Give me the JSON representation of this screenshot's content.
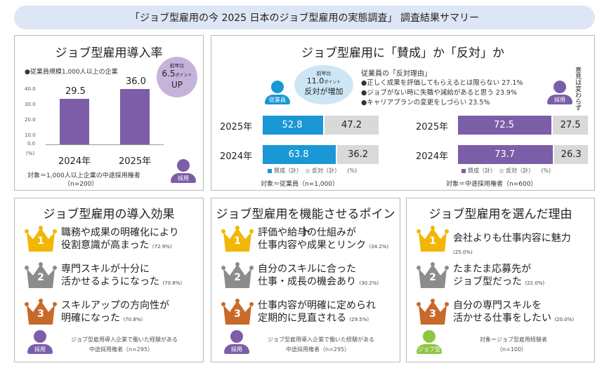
{
  "title": "「ジョブ型雇用の今 2025 日本のジョブ型雇用の実態調査」 調査結果サマリー",
  "colors": {
    "purple": "#7b5ea7",
    "blue": "#1a97d5",
    "gray": "#d9d9d9",
    "gold": "#f2b705",
    "silver": "#8c8c8c",
    "bronze": "#c86a2a",
    "green": "#8ec63f"
  },
  "intro": {
    "title": "ジョブ型雇用導入率",
    "subtitle": "●従業員規模1,000人以上の企業",
    "bubble": {
      "line1": "前年比",
      "line2": "6.5",
      "line2_unit": "ポイント",
      "line3": "UP"
    },
    "y_unit": "(%)",
    "footnote1": "対象＝1,000人以上企業の中途採用権者",
    "footnote2": "（n=200）",
    "person_label": "採用",
    "value_labels": [
      "29.5",
      "36.0"
    ]
  },
  "chart_data": [
    {
      "type": "bar",
      "title": "ジョブ型雇用導入率",
      "categories": [
        "2024年",
        "2025年"
      ],
      "values": [
        29.5,
        36.0
      ],
      "ylim": [
        0,
        40
      ],
      "yticks": [
        "0.0",
        "10.0",
        "20.0",
        "30.0",
        "40.0"
      ],
      "ylabel": "(%)"
    },
    {
      "type": "bar",
      "title": "従業員",
      "categories": [
        "2025年",
        "2024年"
      ],
      "series": [
        {
          "name": "賛成（計）",
          "values": [
            52.8,
            63.8
          ]
        },
        {
          "name": "反対（計）",
          "values": [
            47.2,
            36.2
          ]
        }
      ]
    },
    {
      "type": "bar",
      "title": "採用",
      "categories": [
        "2025年",
        "2024年"
      ],
      "series": [
        {
          "name": "賛成（計）",
          "values": [
            72.5,
            73.7
          ]
        },
        {
          "name": "反対（計）",
          "values": [
            27.5,
            26.3
          ]
        }
      ]
    }
  ],
  "opinion": {
    "title": "ジョブ型雇用に「賛成」か「反対」か",
    "bubble": {
      "line1": "前年比",
      "line2": "11.0",
      "line2_unit": "ポイント",
      "line3": "反対が増加"
    },
    "reasons_title": "従業員の「反対理由」",
    "reasons": [
      "●正しく成果を評価してもらえるとは限らない 27.1%",
      "●ジョブがない時に失職や減給があると思う 23.9%",
      "●キャリアプランの変更をしづらい 23.5%"
    ],
    "vertical_note": "意見は変わらず",
    "employee_label": "従業員",
    "recruiter_label": "採用",
    "emp_rows": [
      {
        "year": "2025年",
        "yes": "52.8",
        "no": "47.2"
      },
      {
        "year": "2024年",
        "yes": "63.8",
        "no": "36.2"
      }
    ],
    "rec_rows": [
      {
        "year": "2025年",
        "yes": "72.5",
        "no": "27.5"
      },
      {
        "year": "2024年",
        "yes": "73.7",
        "no": "26.3"
      }
    ],
    "legend_yes": "賛成（計）",
    "legend_no": "反対（計）",
    "legend_unit": "(%)",
    "emp_footnote": "対象＝従業員（n=1,000）",
    "rec_footnote": "対象＝中途採用権者（n=600）"
  },
  "effects": {
    "title": "ジョブ型雇用の導入効果",
    "items": [
      {
        "rank": "1",
        "line1": "職務や成果の明確化により",
        "line2": "役割意識が高まった",
        "pct": "(72.9%)"
      },
      {
        "rank": "2",
        "line1": "専門スキルが十分に",
        "line2": "活かせるようになった",
        "pct": "(70.8%)"
      },
      {
        "rank": "3",
        "line1": "スキルアップの方向性が",
        "line2": "明確になった",
        "pct": "(70.8%)"
      }
    ],
    "person_label": "採用",
    "footnote1": "ジョブ型雇用導入企業で働いた経験がある",
    "footnote2": "中途採用権者（n=295）"
  },
  "points": {
    "title": "ジョブ型雇用を機能させるポイント",
    "items": [
      {
        "rank": "1",
        "line1": "評価や給与の仕組みが",
        "line2": "仕事内容や成果とリンク",
        "pct": "(34.2%)"
      },
      {
        "rank": "2",
        "line1": "自分のスキルに合った",
        "line2": "仕事・成長の機会あり",
        "pct": "(30.2%)"
      },
      {
        "rank": "3",
        "line1": "仕事内容が明確に定められ",
        "line2": "定期的に見直される",
        "pct": "(29.5%)"
      }
    ],
    "person_label": "採用",
    "footnote1": "ジョブ型雇用導入企業で働いた経験がある",
    "footnote2": "中途採用権者（n=295）"
  },
  "reasons": {
    "title": "ジョブ型雇用を選んだ理由",
    "items": [
      {
        "rank": "1",
        "line1": "会社よりも仕事内容に魅力",
        "line2": "",
        "pct": "(25.0%)"
      },
      {
        "rank": "2",
        "line1": "たまたま応募先が",
        "line2": "ジョブ型だった",
        "pct": "(22.0%)"
      },
      {
        "rank": "3",
        "line1": "自分の専門スキルを",
        "line2": "活かせる仕事をしたい",
        "pct": "(20.0%)"
      }
    ],
    "person_label": "ジョブ型",
    "footnote1": "対象＝ジョブ型雇用経験者",
    "footnote2": "（n=100）"
  }
}
